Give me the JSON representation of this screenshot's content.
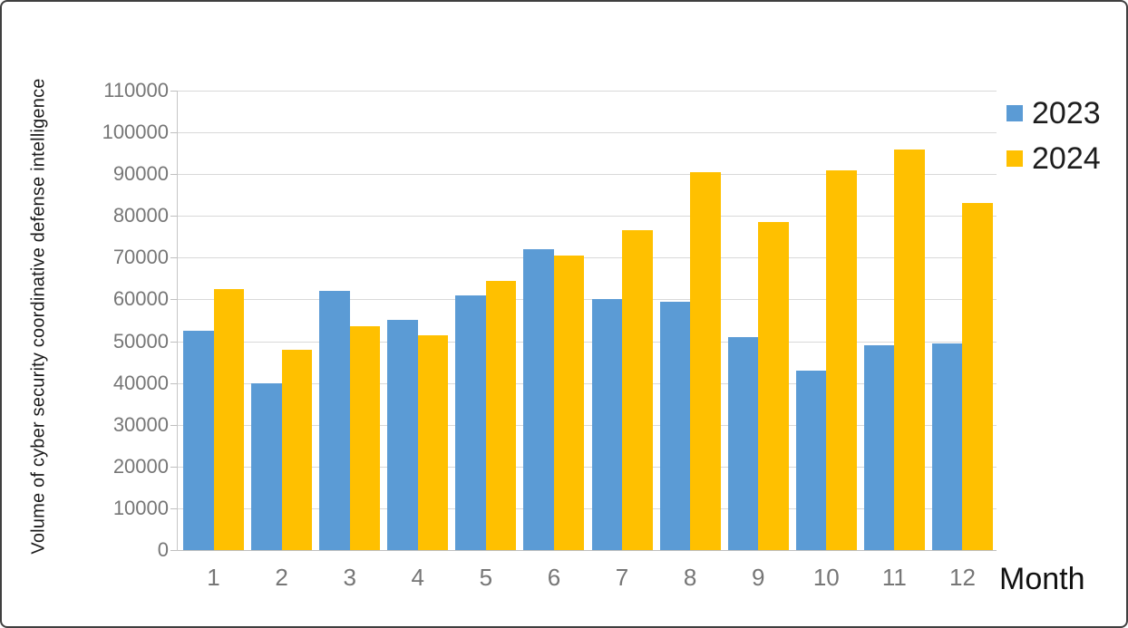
{
  "chart_data": {
    "type": "bar",
    "title": "",
    "xlabel": "Month",
    "ylabel": "Volume of cyber security coordinative defense intelligence",
    "categories": [
      "1",
      "2",
      "3",
      "4",
      "5",
      "6",
      "7",
      "8",
      "9",
      "10",
      "11",
      "12"
    ],
    "series": [
      {
        "name": "2023",
        "color": "#5B9BD5",
        "values": [
          52500,
          40000,
          62000,
          55000,
          61000,
          72000,
          60000,
          59500,
          51000,
          43000,
          49000,
          49500
        ]
      },
      {
        "name": "2024",
        "color": "#FFC000",
        "values": [
          62500,
          48000,
          53500,
          51500,
          64500,
          70500,
          76500,
          90500,
          78500,
          91000,
          96000,
          83000
        ]
      }
    ],
    "ylim": [
      0,
      110000
    ],
    "y_tick_step": 10000,
    "y_tick_labels": [
      "0",
      "10000",
      "20000",
      "30000",
      "40000",
      "50000",
      "60000",
      "70000",
      "80000",
      "90000",
      "100000",
      "110000"
    ],
    "grid": true,
    "legend_position": "right-top",
    "colors": {
      "gridline": "#d9d9d9",
      "axis_line": "#bfbfbf",
      "tick_label": "#767676",
      "axis_title": "#111111",
      "background": "#ffffff",
      "frame_border": "#3f3f3f"
    }
  }
}
